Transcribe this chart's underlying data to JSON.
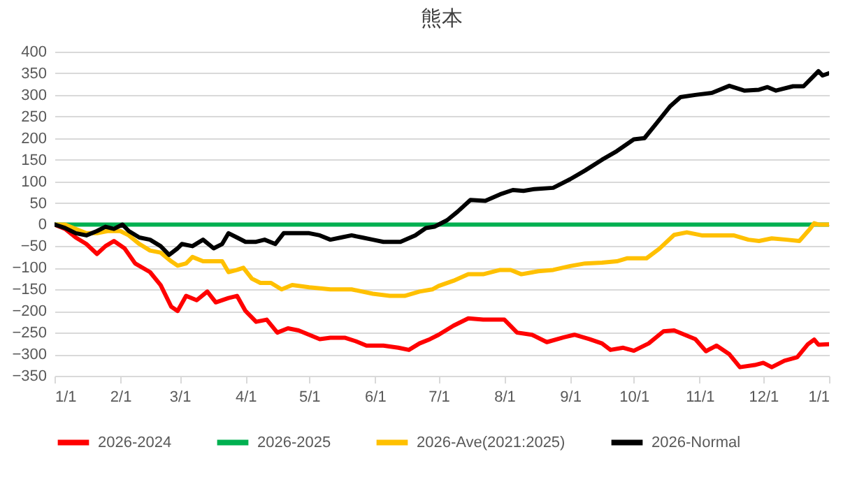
{
  "chart_data": {
    "type": "line",
    "title": "熊本",
    "xlim": [
      "2026-01-01",
      "2027-01-01"
    ],
    "ylim": [
      -350,
      400
    ],
    "xticks": [
      {
        "value": "2026-01-01",
        "label": "1/1"
      },
      {
        "value": "2026-02-01",
        "label": "2/1"
      },
      {
        "value": "2026-03-01",
        "label": "3/1"
      },
      {
        "value": "2026-04-01",
        "label": "4/1"
      },
      {
        "value": "2026-05-01",
        "label": "5/1"
      },
      {
        "value": "2026-06-01",
        "label": "6/1"
      },
      {
        "value": "2026-07-01",
        "label": "7/1"
      },
      {
        "value": "2026-08-01",
        "label": "8/1"
      },
      {
        "value": "2026-09-01",
        "label": "9/1"
      },
      {
        "value": "2026-10-01",
        "label": "10/1"
      },
      {
        "value": "2026-11-01",
        "label": "11/1"
      },
      {
        "value": "2026-12-01",
        "label": "12/1"
      },
      {
        "value": "2027-01-01",
        "label": "1/1"
      }
    ],
    "yticks": [
      -350,
      -300,
      -250,
      -200,
      -150,
      -100,
      -50,
      0,
      50,
      100,
      150,
      200,
      250,
      300,
      350,
      400
    ],
    "grid": "y",
    "legend": "bottom",
    "marker": "none",
    "line_style": "solid",
    "series": [
      {
        "name": "2026-2024",
        "color": "#ff0000",
        "x": [
          "2026-01-01",
          "2026-01-06",
          "2026-01-11",
          "2026-01-16",
          "2026-01-21",
          "2026-01-25",
          "2026-01-29",
          "2026-02-03",
          "2026-02-08",
          "2026-02-15",
          "2026-02-20",
          "2026-02-25",
          "2026-02-28",
          "2026-03-04",
          "2026-03-09",
          "2026-03-14",
          "2026-03-18",
          "2026-03-24",
          "2026-03-28",
          "2026-04-01",
          "2026-04-06",
          "2026-04-11",
          "2026-04-16",
          "2026-04-21",
          "2026-04-26",
          "2026-05-01",
          "2026-05-06",
          "2026-05-11",
          "2026-05-18",
          "2026-05-23",
          "2026-05-28",
          "2026-06-05",
          "2026-06-12",
          "2026-06-17",
          "2026-06-22",
          "2026-06-27",
          "2026-07-01",
          "2026-07-08",
          "2026-07-15",
          "2026-07-22",
          "2026-08-01",
          "2026-08-07",
          "2026-08-14",
          "2026-08-21",
          "2026-08-29",
          "2026-09-03",
          "2026-09-10",
          "2026-09-16",
          "2026-09-20",
          "2026-09-26",
          "2026-10-01",
          "2026-10-08",
          "2026-10-15",
          "2026-10-20",
          "2026-10-25",
          "2026-10-30",
          "2026-11-04",
          "2026-11-09",
          "2026-11-15",
          "2026-11-20",
          "2026-11-27",
          "2026-12-01",
          "2026-12-05",
          "2026-12-11",
          "2026-12-17",
          "2026-12-22",
          "2026-12-25",
          "2026-12-27",
          "2027-01-01"
        ],
        "values": [
          0,
          -10,
          -30,
          -45,
          -68,
          -50,
          -38,
          -55,
          -90,
          -110,
          -140,
          -190,
          -200,
          -165,
          -175,
          -155,
          -180,
          -170,
          -165,
          -200,
          -225,
          -220,
          -250,
          -240,
          -245,
          -255,
          -265,
          -262,
          -262,
          -270,
          -280,
          -280,
          -285,
          -290,
          -275,
          -265,
          -255,
          -234,
          -217,
          -220,
          -220,
          -250,
          -255,
          -272,
          -261,
          -255,
          -265,
          -275,
          -290,
          -285,
          -292,
          -275,
          -247,
          -245,
          -255,
          -265,
          -293,
          -280,
          -300,
          -330,
          -325,
          -320,
          -330,
          -315,
          -307,
          -277,
          -266,
          -278,
          -277
        ]
      },
      {
        "name": "2026-2025",
        "color": "#00b050",
        "x": [
          "2026-01-01",
          "2027-01-01"
        ],
        "values": [
          0,
          0
        ]
      },
      {
        "name": "2026-Ave(2021:2025)",
        "color": "#ffc000",
        "x": [
          "2026-01-01",
          "2026-01-06",
          "2026-01-11",
          "2026-01-16",
          "2026-01-21",
          "2026-01-26",
          "2026-02-01",
          "2026-02-05",
          "2026-02-10",
          "2026-02-15",
          "2026-02-20",
          "2026-02-25",
          "2026-02-28",
          "2026-03-04",
          "2026-03-07",
          "2026-03-12",
          "2026-03-17",
          "2026-03-21",
          "2026-03-24",
          "2026-03-28",
          "2026-03-31",
          "2026-04-04",
          "2026-04-08",
          "2026-04-13",
          "2026-04-18",
          "2026-04-23",
          "2026-05-01",
          "2026-05-11",
          "2026-05-21",
          "2026-05-31",
          "2026-06-08",
          "2026-06-15",
          "2026-06-22",
          "2026-06-28",
          "2026-07-01",
          "2026-07-08",
          "2026-07-15",
          "2026-07-22",
          "2026-07-30",
          "2026-08-04",
          "2026-08-09",
          "2026-08-17",
          "2026-08-24",
          "2026-09-01",
          "2026-09-08",
          "2026-09-16",
          "2026-09-23",
          "2026-09-28",
          "2026-10-07",
          "2026-10-13",
          "2026-10-20",
          "2026-10-26",
          "2026-11-02",
          "2026-11-09",
          "2026-11-17",
          "2026-11-24",
          "2026-11-29",
          "2026-12-05",
          "2026-12-12",
          "2026-12-18",
          "2026-12-23",
          "2026-12-25",
          "2026-12-27",
          "2027-01-01"
        ],
        "values": [
          0,
          0,
          -10,
          -20,
          -20,
          -15,
          -15,
          -25,
          -45,
          -60,
          -65,
          -85,
          -95,
          -90,
          -75,
          -85,
          -85,
          -85,
          -110,
          -105,
          -100,
          -125,
          -135,
          -135,
          -150,
          -140,
          -145,
          -150,
          -150,
          -160,
          -165,
          -165,
          -155,
          -150,
          -142,
          -130,
          -115,
          -115,
          -105,
          -105,
          -115,
          -108,
          -105,
          -96,
          -90,
          -88,
          -85,
          -78,
          -78,
          -56,
          -24,
          -18,
          -25,
          -25,
          -25,
          -35,
          -38,
          -32,
          -35,
          -38,
          -10,
          3,
          0,
          0
        ]
      },
      {
        "name": "2026-Normal",
        "color": "#000000",
        "x": [
          "2026-01-01",
          "2026-01-06",
          "2026-01-11",
          "2026-01-16",
          "2026-01-21",
          "2026-01-25",
          "2026-01-29",
          "2026-02-02",
          "2026-02-05",
          "2026-02-10",
          "2026-02-15",
          "2026-02-20",
          "2026-02-24",
          "2026-02-28",
          "2026-03-02",
          "2026-03-07",
          "2026-03-12",
          "2026-03-17",
          "2026-03-21",
          "2026-03-24",
          "2026-03-28",
          "2026-04-01",
          "2026-04-06",
          "2026-04-10",
          "2026-04-15",
          "2026-04-19",
          "2026-04-26",
          "2026-05-01",
          "2026-05-06",
          "2026-05-11",
          "2026-05-16",
          "2026-05-21",
          "2026-05-26",
          "2026-05-31",
          "2026-06-05",
          "2026-06-13",
          "2026-06-20",
          "2026-06-25",
          "2026-06-29",
          "2026-07-01",
          "2026-07-05",
          "2026-07-10",
          "2026-07-16",
          "2026-07-23",
          "2026-07-30",
          "2026-08-05",
          "2026-08-10",
          "2026-08-15",
          "2026-08-24",
          "2026-09-01",
          "2026-09-08",
          "2026-09-16",
          "2026-09-23",
          "2026-10-01",
          "2026-10-06",
          "2026-10-11",
          "2026-10-18",
          "2026-10-23",
          "2026-10-30",
          "2026-11-07",
          "2026-11-15",
          "2026-11-22",
          "2026-11-29",
          "2026-12-03",
          "2026-12-07",
          "2026-12-15",
          "2026-12-20",
          "2026-12-25",
          "2026-12-27",
          "2026-12-29",
          "2027-01-01"
        ],
        "values": [
          0,
          -8,
          -20,
          -25,
          -15,
          -5,
          -10,
          0,
          -15,
          -30,
          -35,
          -50,
          -70,
          -55,
          -45,
          -50,
          -35,
          -55,
          -45,
          -20,
          -30,
          -40,
          -40,
          -35,
          -45,
          -20,
          -20,
          -20,
          -25,
          -35,
          -30,
          -25,
          -30,
          -35,
          -40,
          -40,
          -25,
          -8,
          -5,
          0,
          10,
          30,
          57,
          55,
          70,
          80,
          78,
          82,
          85,
          105,
          125,
          150,
          170,
          197,
          200,
          230,
          273,
          295,
          300,
          305,
          321,
          310,
          312,
          318,
          310,
          320,
          320,
          345,
          355,
          345,
          350
        ]
      }
    ]
  }
}
